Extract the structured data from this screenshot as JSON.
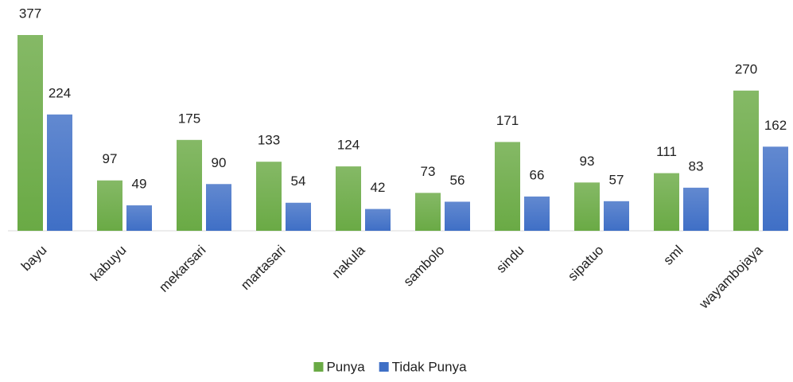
{
  "chart_data": {
    "type": "bar",
    "categories": [
      "bayu",
      "kabuyu",
      "mekarsari",
      "martasari",
      "nakula",
      "sambolo",
      "sindu",
      "sipatuo",
      "sml",
      "wayambojaya"
    ],
    "series": [
      {
        "name": "Punya",
        "color": "#6aaa45",
        "values": [
          377,
          97,
          175,
          133,
          124,
          73,
          171,
          93,
          111,
          270
        ]
      },
      {
        "name": "Tidak Punya",
        "color": "#3f6fc6",
        "values": [
          224,
          49,
          90,
          54,
          42,
          56,
          66,
          57,
          83,
          162
        ]
      }
    ],
    "legend": "bottom"
  }
}
